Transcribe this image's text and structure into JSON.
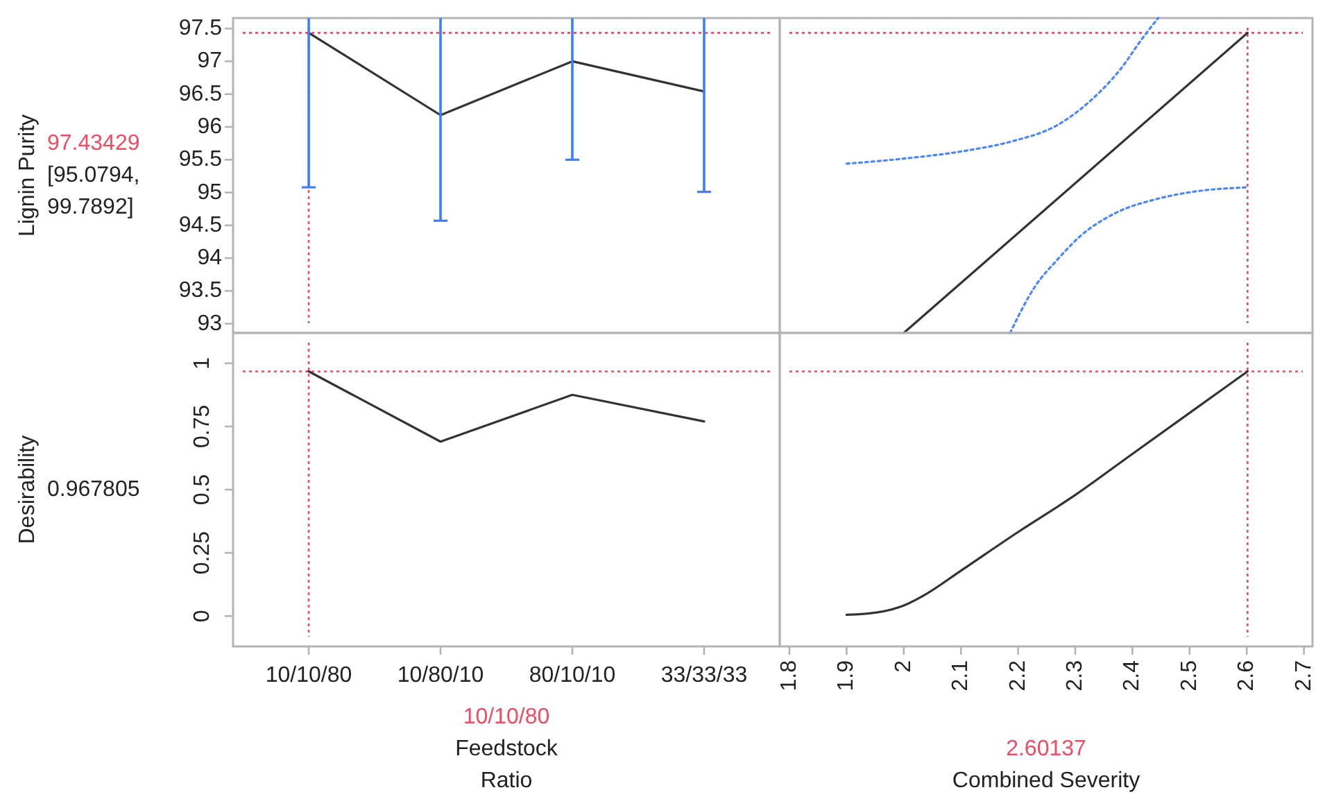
{
  "chart_data": [
    {
      "type": "line",
      "categories": [
        "10/10/80",
        "10/80/10",
        "80/10/10",
        "33/33/33"
      ],
      "ylabel": "Lignin Purity",
      "ylim": [
        92.86,
        97.66
      ],
      "yticks": [
        93,
        93.5,
        94,
        94.5,
        95,
        95.5,
        96,
        96.5,
        97,
        97.5
      ],
      "tick_labels": "y",
      "series": [
        {
          "color": "#333333",
          "values": [
            97.43429,
            96.18,
            97.0,
            96.54
          ],
          "errors": [
            [
              95.0794,
              97.66
            ],
            [
              94.57,
              97.66
            ],
            [
              95.5,
              97.66
            ],
            [
              95.01,
              97.66
            ]
          ]
        }
      ],
      "ref_lines": [
        {
          "axis": "y",
          "value": 97.43429,
          "label": "97.43429",
          "color": "#f24a63",
          "line_style": "dotted"
        },
        {
          "axis": "x",
          "value": "10/10/80",
          "color": "#f24a63",
          "line_style": "dotted"
        }
      ],
      "annotations": [
        "[95.0794, 99.7892]"
      ]
    },
    {
      "type": "line",
      "xlim": [
        1.783,
        2.715
      ],
      "ylim": [
        92.86,
        97.66
      ],
      "tick_labels": false,
      "series": [
        {
          "color": "#333333",
          "x": [
            2.0,
            2.60137
          ],
          "values": [
            92.86,
            97.43429
          ]
        },
        {
          "color": "#4a86ff",
          "line_style": "dotted",
          "x": [
            1.9,
            1.992,
            2.11,
            2.189,
            2.269,
            2.324,
            2.379,
            2.419,
            2.445
          ],
          "values": [
            95.44,
            95.51,
            95.64,
            95.78,
            96.03,
            96.38,
            96.88,
            97.37,
            97.66
          ]
        },
        {
          "color": "#4a86ff",
          "line_style": "dotted",
          "x": [
            2.186,
            2.229,
            2.269,
            2.308,
            2.371,
            2.442,
            2.513,
            2.60137
          ],
          "values": [
            92.86,
            93.56,
            93.98,
            94.33,
            94.69,
            94.9,
            95.02,
            95.0794
          ]
        }
      ],
      "ref_lines": [
        {
          "axis": "y",
          "value": 97.43429,
          "color": "#f24a63",
          "line_style": "dotted"
        },
        {
          "axis": "x",
          "value": 2.60137,
          "color": "#f24a63",
          "line_style": "dotted"
        }
      ]
    },
    {
      "type": "line",
      "categories": [
        "10/10/80",
        "10/80/10",
        "80/10/10",
        "33/33/33"
      ],
      "ylabel": "Desirability",
      "xlabel": "Feedstock Ratio",
      "ylim": [
        -0.12,
        1.12
      ],
      "yticks": [
        0,
        0.25,
        0.5,
        0.75,
        1
      ],
      "series": [
        {
          "color": "#333333",
          "values": [
            0.967805,
            0.69,
            0.875,
            0.77
          ]
        }
      ],
      "ref_lines": [
        {
          "axis": "y",
          "value": 0.967805,
          "color": "#f24a63",
          "line_style": "dotted"
        },
        {
          "axis": "x",
          "value": "10/10/80",
          "label": "10/10/80",
          "color": "#f24a63",
          "line_style": "dotted"
        }
      ],
      "annotations": [
        "0.967805"
      ]
    },
    {
      "type": "line",
      "xlabel": "Combined Severity",
      "xlim": [
        1.783,
        2.715
      ],
      "xticks": [
        1.8,
        1.9,
        2,
        2.1,
        2.2,
        2.3,
        2.4,
        2.5,
        2.6,
        2.7
      ],
      "ylim": [
        -0.12,
        1.12
      ],
      "tick_labels": "x",
      "series": [
        {
          "color": "#333333",
          "x": [
            1.9,
            1.952,
            2.0,
            2.039,
            2.099,
            2.201,
            2.3,
            2.399,
            2.502,
            2.60137
          ],
          "values": [
            0.005,
            0.014,
            0.042,
            0.087,
            0.178,
            0.334,
            0.479,
            0.64,
            0.807,
            0.967805
          ]
        }
      ],
      "ref_lines": [
        {
          "axis": "y",
          "value": 0.967805,
          "color": "#f24a63",
          "line_style": "dotted"
        },
        {
          "axis": "x",
          "value": 2.60137,
          "label": "2.60137",
          "color": "#f24a63",
          "line_style": "dotted"
        }
      ]
    }
  ]
}
